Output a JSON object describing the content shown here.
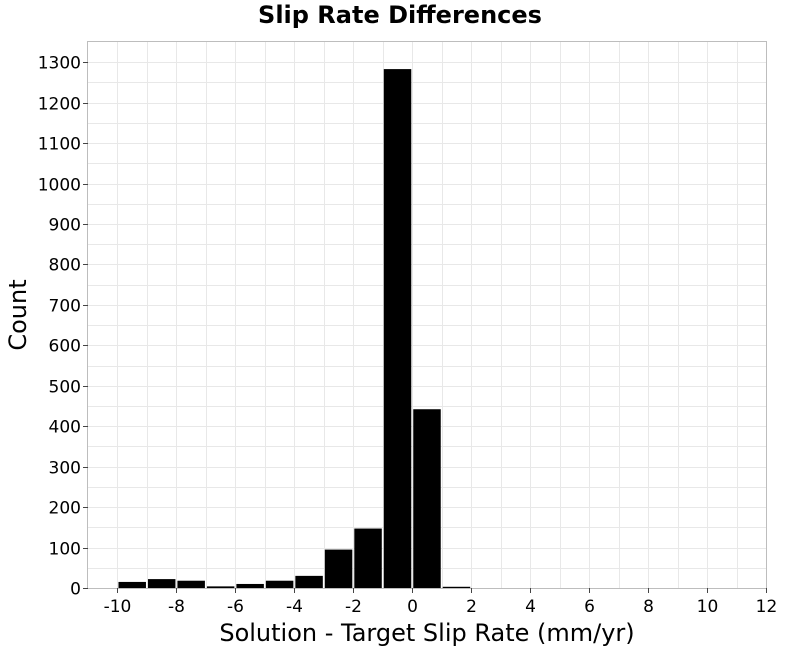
{
  "chart_data": {
    "type": "bar",
    "title": "Slip Rate Differences",
    "xlabel": "Solution - Target Slip Rate (mm/yr)",
    "ylabel": "Count",
    "xlim": [
      -11,
      12
    ],
    "ylim": [
      0,
      1350
    ],
    "xticks": [
      -10,
      -8,
      -6,
      -4,
      -2,
      0,
      2,
      4,
      6,
      8,
      10,
      12
    ],
    "yticks": [
      0,
      100,
      200,
      300,
      400,
      500,
      600,
      700,
      800,
      900,
      1000,
      1100,
      1200,
      1300
    ],
    "grid": true,
    "bin_width": 1,
    "bar_color": "#000000",
    "bar_edge_color": "#ffffff",
    "bins": [
      {
        "center": -9.5,
        "count": 15
      },
      {
        "center": -8.5,
        "count": 22
      },
      {
        "center": -7.5,
        "count": 18
      },
      {
        "center": -6.5,
        "count": 4
      },
      {
        "center": -5.5,
        "count": 10
      },
      {
        "center": -4.5,
        "count": 18
      },
      {
        "center": -3.5,
        "count": 30
      },
      {
        "center": -2.5,
        "count": 95
      },
      {
        "center": -1.5,
        "count": 147
      },
      {
        "center": -0.5,
        "count": 1283
      },
      {
        "center": 0.5,
        "count": 442
      },
      {
        "center": 1.5,
        "count": 3
      }
    ]
  }
}
